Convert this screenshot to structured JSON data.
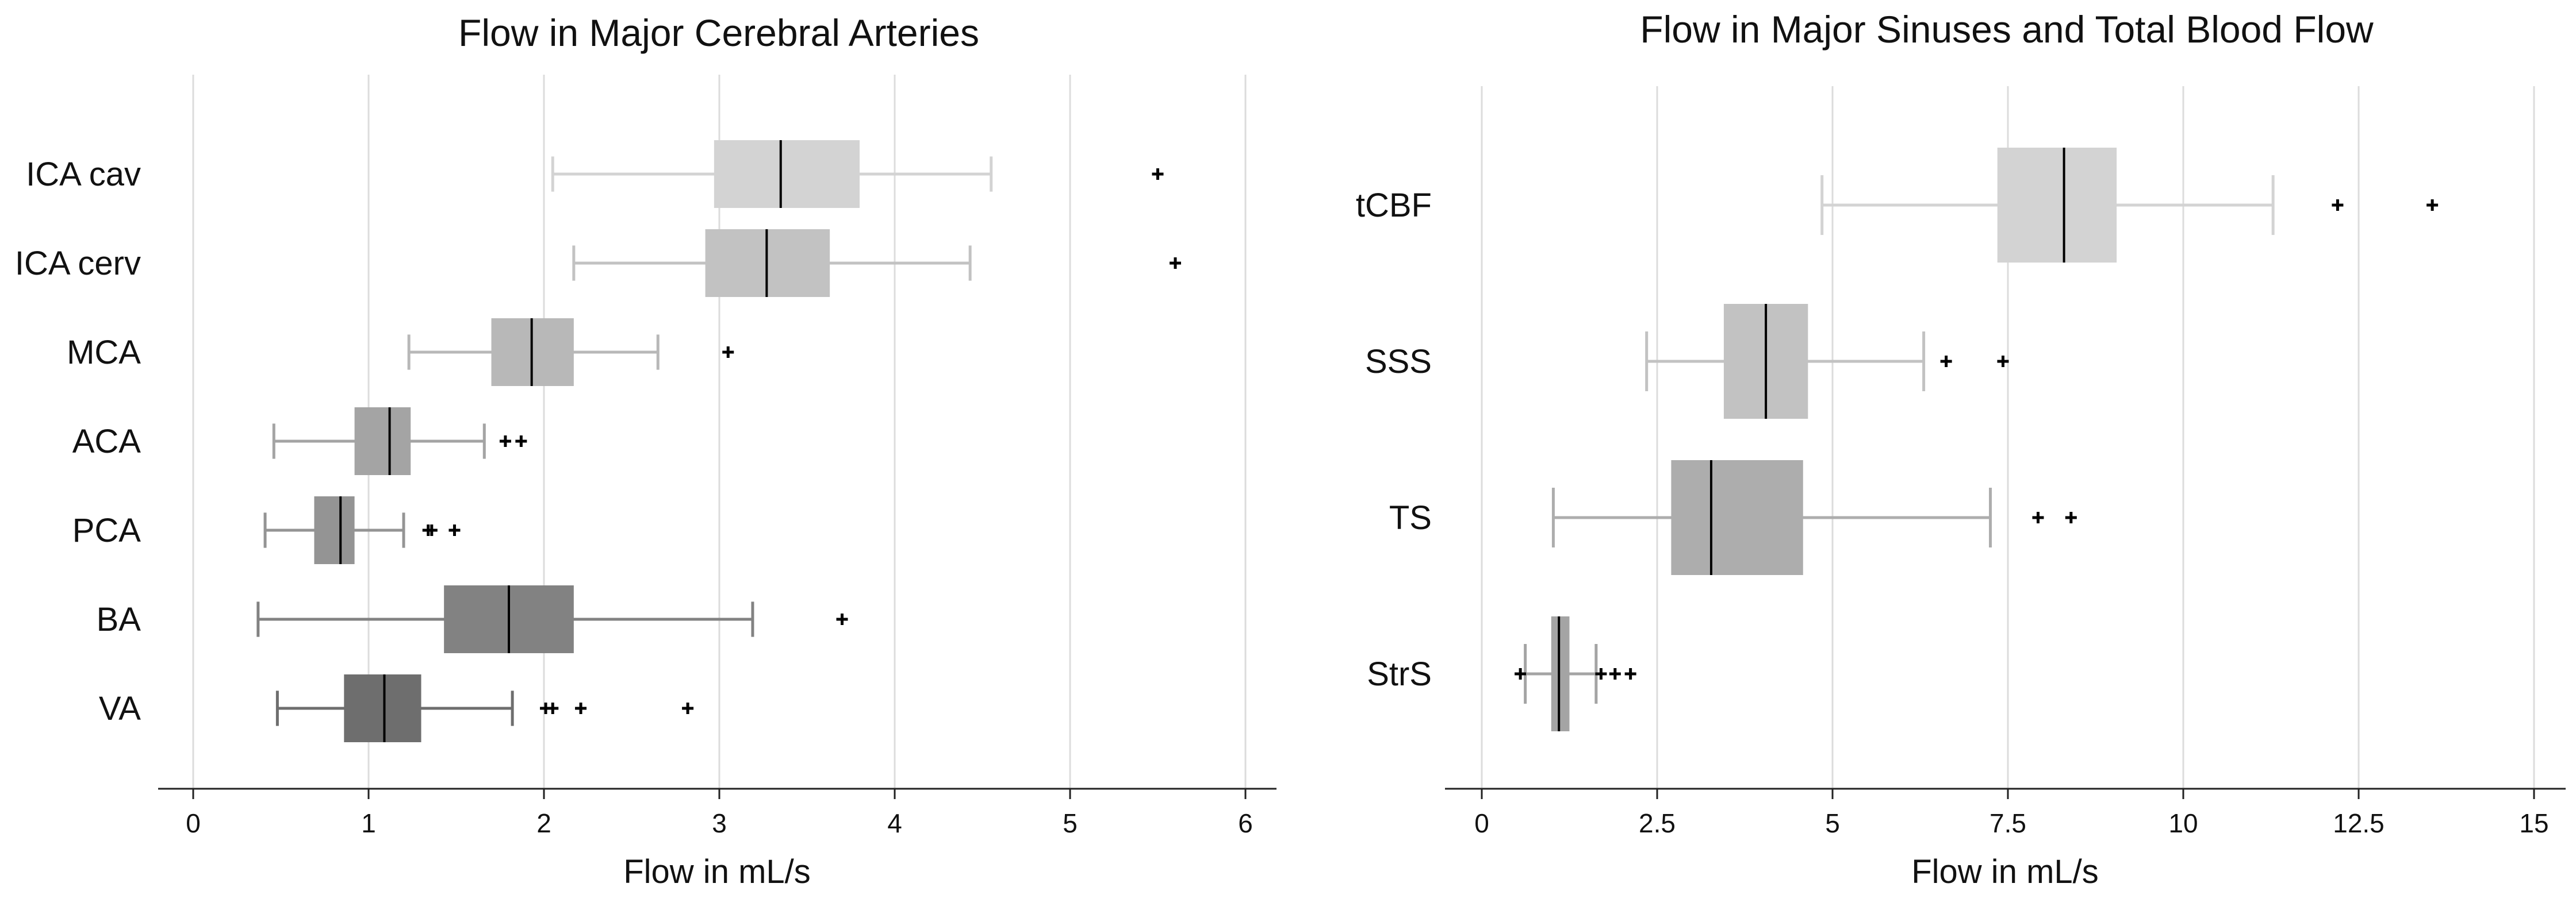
{
  "chart_data": [
    {
      "type": "boxplot",
      "title": "Flow in Major Cerebral Arteries",
      "xlabel": "Flow in mL/s",
      "ylabel": "",
      "xlim": [
        -0.2,
        6.2
      ],
      "xticks": [
        0,
        1,
        2,
        3,
        4,
        5,
        6
      ],
      "xtick_labels": [
        "0",
        "1",
        "2",
        "3",
        "4",
        "5",
        "6"
      ],
      "grid": "vertical",
      "categories": [
        "ICA cav",
        "ICA cerv",
        "MCA",
        "ACA",
        "PCA",
        "BA",
        "VA"
      ],
      "boxes": [
        {
          "label": "ICA cav",
          "whisker_low": 2.05,
          "q1": 2.97,
          "median": 3.35,
          "q3": 3.8,
          "whisker_high": 4.55,
          "outliers": [
            5.5
          ],
          "color": "#d3d3d3"
        },
        {
          "label": "ICA cerv",
          "whisker_low": 2.17,
          "q1": 2.92,
          "median": 3.27,
          "q3": 3.63,
          "whisker_high": 4.43,
          "outliers": [
            5.6
          ],
          "color": "#c2c2c2"
        },
        {
          "label": "MCA",
          "whisker_low": 1.23,
          "q1": 1.7,
          "median": 1.93,
          "q3": 2.17,
          "whisker_high": 2.65,
          "outliers": [
            3.05
          ],
          "color": "#b8b8b8"
        },
        {
          "label": "ACA",
          "whisker_low": 0.46,
          "q1": 0.92,
          "median": 1.12,
          "q3": 1.24,
          "whisker_high": 1.66,
          "outliers": [
            1.78,
            1.87
          ],
          "color": "#a4a4a4"
        },
        {
          "label": "PCA",
          "whisker_low": 0.41,
          "q1": 0.69,
          "median": 0.84,
          "q3": 0.92,
          "whisker_high": 1.2,
          "outliers": [
            1.34,
            1.36,
            1.49
          ],
          "color": "#949494"
        },
        {
          "label": "BA",
          "whisker_low": 0.37,
          "q1": 1.43,
          "median": 1.8,
          "q3": 2.17,
          "whisker_high": 3.19,
          "outliers": [
            3.7
          ],
          "color": "#828282"
        },
        {
          "label": "VA",
          "whisker_low": 0.48,
          "q1": 0.86,
          "median": 1.09,
          "q3": 1.3,
          "whisker_high": 1.82,
          "outliers": [
            2.01,
            2.05,
            2.21,
            2.82
          ],
          "color": "#6e6e6e"
        }
      ]
    },
    {
      "type": "boxplot",
      "title": "Flow in Major Sinuses and Total Blood Flow",
      "xlabel": "Flow in mL/s",
      "ylabel": "",
      "xlim": [
        -0.5,
        15.5
      ],
      "xticks": [
        0,
        2.5,
        5,
        7.5,
        10,
        12.5,
        15
      ],
      "xtick_labels": [
        "0",
        "2.5",
        "5",
        "7.5",
        "10",
        "12.5",
        "15"
      ],
      "grid": "vertical",
      "categories": [
        "tCBF",
        "SSS",
        "TS",
        "StrS"
      ],
      "boxes": [
        {
          "label": "tCBF",
          "whisker_low": 4.85,
          "q1": 7.35,
          "median": 8.3,
          "q3": 9.05,
          "whisker_high": 11.28,
          "outliers": [
            12.2,
            13.55
          ],
          "color": "#d3d3d3"
        },
        {
          "label": "SSS",
          "whisker_low": 2.35,
          "q1": 3.45,
          "median": 4.05,
          "q3": 4.65,
          "whisker_high": 6.3,
          "outliers": [
            6.62,
            7.43
          ],
          "color": "#c2c2c2"
        },
        {
          "label": "TS",
          "whisker_low": 1.02,
          "q1": 2.7,
          "median": 3.27,
          "q3": 4.58,
          "whisker_high": 7.25,
          "outliers": [
            7.93,
            8.4
          ],
          "color": "#adadad"
        },
        {
          "label": "StrS",
          "whisker_low": 0.62,
          "q1": 0.99,
          "median": 1.1,
          "q3": 1.25,
          "whisker_high": 1.63,
          "outliers": [
            0.55,
            1.7,
            1.9,
            2.12
          ],
          "color": "#a4a4a4"
        }
      ]
    }
  ]
}
